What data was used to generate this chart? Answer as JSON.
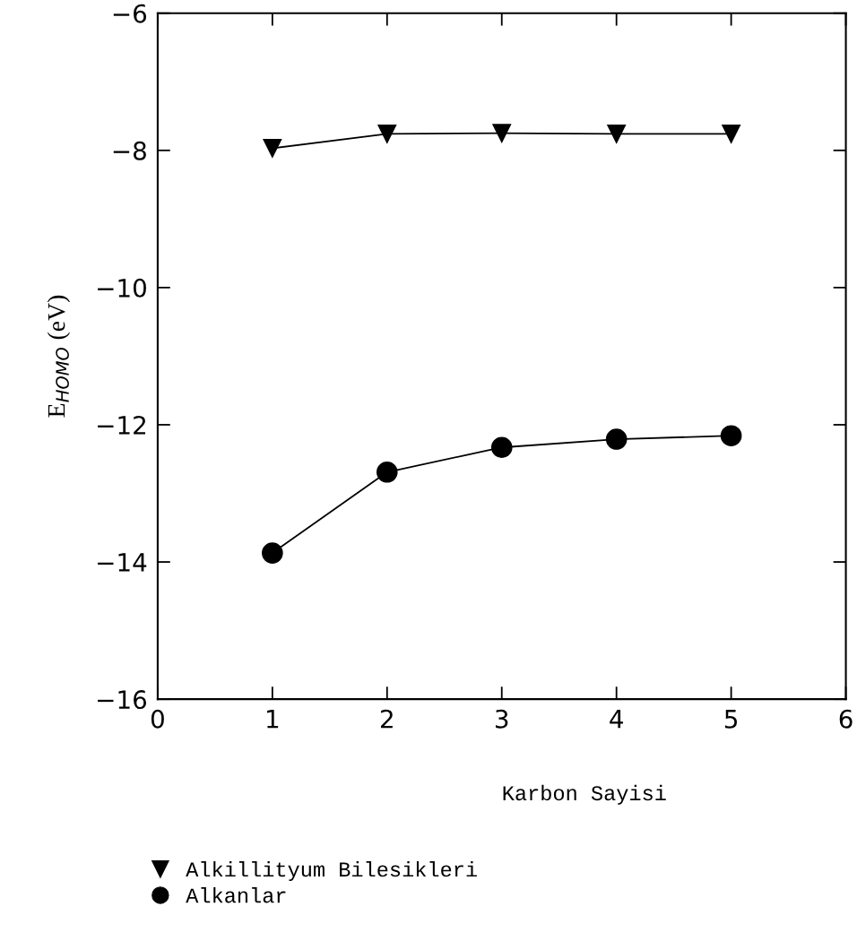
{
  "chart_data": {
    "type": "line",
    "xlabel": "Karbon Sayisi",
    "ylabel": "E$_{HOMO}$ (eV)",
    "x": [
      1,
      2,
      3,
      4,
      5
    ],
    "series": [
      {
        "name": "Alkillityum Bilesikleri",
        "color": "#000000",
        "marker": "triangle",
        "values": [
          -7.97,
          -7.76,
          -7.75,
          -7.76,
          -7.76
        ]
      },
      {
        "name": "Alkanlar",
        "color": "#000000",
        "marker": "circle",
        "values": [
          -13.87,
          -12.69,
          -12.33,
          -12.21,
          -12.16
        ]
      }
    ],
    "xlim": [
      0,
      6
    ],
    "xticks": [
      0,
      1,
      2,
      3,
      4,
      5,
      6
    ],
    "ylim": [
      -16,
      -6
    ],
    "yticks": [
      -16,
      -14,
      -12,
      -10,
      -8,
      -6
    ],
    "grid": false,
    "legend": "bottom",
    "line_style": "solid"
  }
}
